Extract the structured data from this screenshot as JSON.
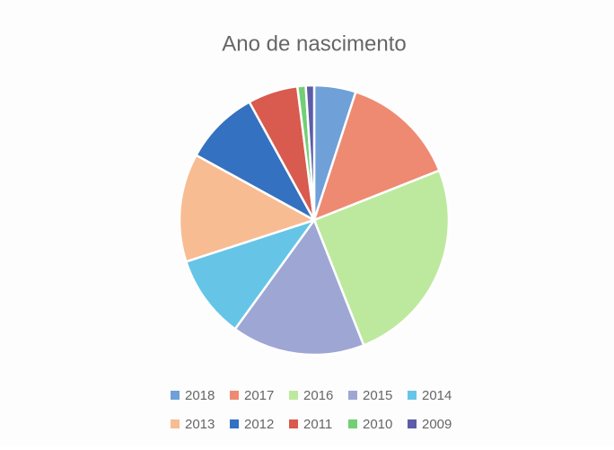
{
  "chart_data": {
    "type": "pie",
    "title": "Ano de nascimento",
    "categories": [
      "2018",
      "2017",
      "2016",
      "2015",
      "2014",
      "2013",
      "2012",
      "2011",
      "2010",
      "2009"
    ],
    "values": [
      5,
      14,
      25,
      16,
      10,
      13,
      9,
      6,
      1,
      1
    ],
    "colors": [
      "#6fa0d8",
      "#ee8a72",
      "#bde99e",
      "#9ea6d4",
      "#66c5e6",
      "#f8bc93",
      "#3471c0",
      "#d95a4e",
      "#72cf74",
      "#5c5ca8"
    ],
    "legend": "bottom"
  }
}
